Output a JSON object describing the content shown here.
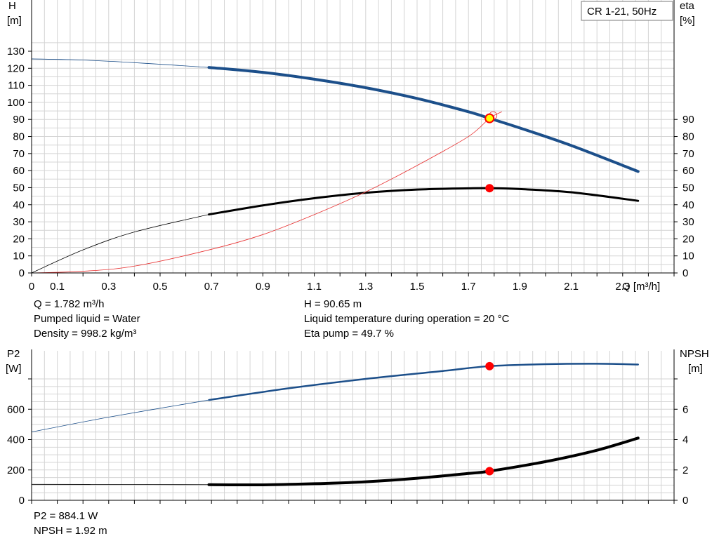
{
  "model_label": "CR 1-21, 50Hz",
  "top_chart": {
    "left_axis_title": [
      "H",
      "[m]"
    ],
    "right_axis_title": [
      "eta",
      "[%]"
    ],
    "x_axis_title": "Q [m³/h]"
  },
  "bottom_chart": {
    "left_axis_title": [
      "P2",
      "[W]"
    ],
    "right_axis_title": [
      "NPSH",
      "[m]"
    ]
  },
  "info_top": {
    "q": "Q = 1.782 m³/h",
    "liquid": "Pumped liquid = Water",
    "density": "Density = 998.2 kg/m³",
    "h": "H = 90.65 m",
    "temperature": "Liquid temperature during operation = 20 °C",
    "eta": "Eta pump = 49.7 %"
  },
  "info_bottom": {
    "p2": "P2 = 884.1 W",
    "npsh": "NPSH = 1.92 m"
  },
  "colors": {
    "blue_curve": "#1c4f8a",
    "black_curve": "#000000",
    "red_curve": "#e83030",
    "duty_point": "#ff0000",
    "duty_point_fill": "#ffff00",
    "grid": "#d4d4d4"
  },
  "chart_data": [
    {
      "type": "line",
      "xlabel": "Q [m³/h]",
      "ylabel": "H [m]",
      "y2label": "eta [%]",
      "xlim": [
        0,
        2.5
      ],
      "ylim": [
        0,
        130
      ],
      "y2lim": [
        0,
        130
      ],
      "x_ticks": [
        0,
        0.1,
        0.3,
        0.5,
        0.7,
        0.9,
        1.1,
        1.3,
        1.5,
        1.7,
        1.9,
        2.1,
        2.3
      ],
      "y_ticks": [
        0,
        10,
        20,
        30,
        40,
        50,
        60,
        70,
        80,
        90,
        100,
        110,
        120,
        130
      ],
      "y2_ticks": [
        0,
        10,
        20,
        30,
        40,
        50,
        60,
        70,
        80,
        90
      ],
      "grid": true,
      "operating_range": [
        0.69,
        2.36
      ],
      "series": [
        {
          "axis": "left",
          "x": [
            0,
            0.2,
            0.4,
            0.69,
            0.9,
            1.1,
            1.3,
            1.5,
            1.7,
            1.782,
            1.9,
            2.1,
            2.36
          ],
          "y": [
            125.5,
            124.8,
            123.3,
            120.5,
            117.6,
            113.6,
            108.6,
            102.3,
            94.5,
            90.65,
            85.0,
            74.7,
            59.5
          ]
        },
        {
          "axis": "right",
          "x": [
            0,
            0.2,
            0.4,
            0.69,
            0.9,
            1.1,
            1.3,
            1.5,
            1.7,
            1.782,
            1.9,
            2.1,
            2.36
          ],
          "y": [
            0,
            13.5,
            24.0,
            34.3,
            39.6,
            43.8,
            47.0,
            48.9,
            49.6,
            49.7,
            49.2,
            47.3,
            42.3
          ]
        },
        {
          "axis": "left",
          "x": [
            0,
            0.2,
            0.4,
            0.69,
            0.9,
            1.1,
            1.3,
            1.5,
            1.7,
            1.782,
            1.83
          ],
          "y": [
            0,
            1.0,
            4.0,
            13.5,
            22.5,
            34.2,
            47.5,
            63.0,
            80.0,
            90.65,
            94.5
          ]
        }
      ],
      "duty_points": [
        {
          "x": 1.782,
          "y": 90.65,
          "axis": "left"
        },
        {
          "x": 1.782,
          "y": 49.7,
          "axis": "right"
        }
      ]
    },
    {
      "type": "line",
      "ylabel": "P2 [W]",
      "y2label": "NPSH [m]",
      "xlim": [
        0,
        2.5
      ],
      "ylim": [
        0,
        800
      ],
      "y2lim": [
        0,
        8
      ],
      "y_ticks": [
        0,
        200,
        400,
        600
      ],
      "y2_ticks": [
        0,
        2,
        4,
        6
      ],
      "grid": true,
      "operating_range": [
        0.69,
        2.36
      ],
      "series": [
        {
          "axis": "left",
          "x": [
            0,
            0.3,
            0.69,
            1.0,
            1.3,
            1.6,
            1.782,
            2.0,
            2.2,
            2.36
          ],
          "y": [
            450,
            548,
            661,
            738,
            800,
            852,
            884.1,
            897,
            900,
            895
          ]
        },
        {
          "axis": "right",
          "x": [
            0,
            0.3,
            0.69,
            0.9,
            1.1,
            1.3,
            1.5,
            1.7,
            1.782,
            2.0,
            2.2,
            2.36
          ],
          "y": [
            1.05,
            1.04,
            1.03,
            1.02,
            1.09,
            1.22,
            1.45,
            1.77,
            1.92,
            2.55,
            3.3,
            4.1
          ]
        }
      ],
      "duty_points": [
        {
          "x": 1.782,
          "y": 884.1,
          "axis": "left"
        },
        {
          "x": 1.782,
          "y": 1.92,
          "axis": "right"
        }
      ]
    }
  ]
}
